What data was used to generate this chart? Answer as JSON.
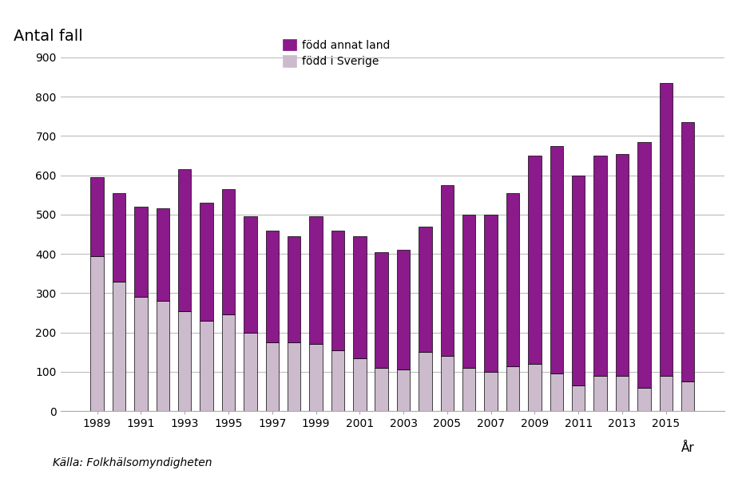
{
  "years": [
    1989,
    1990,
    1991,
    1992,
    1993,
    1994,
    1995,
    1996,
    1997,
    1998,
    1999,
    2000,
    2001,
    2002,
    2003,
    2004,
    2005,
    2006,
    2007,
    2008,
    2009,
    2010,
    2011,
    2012,
    2013,
    2014,
    2015,
    2016
  ],
  "fodd_i_sverige": [
    395,
    330,
    290,
    280,
    255,
    230,
    245,
    200,
    175,
    175,
    170,
    155,
    135,
    110,
    105,
    150,
    140,
    110,
    100,
    115,
    120,
    95,
    65,
    90,
    90,
    60,
    90,
    75
  ],
  "fodd_annat_land": [
    200,
    225,
    230,
    235,
    360,
    300,
    320,
    295,
    285,
    270,
    325,
    305,
    310,
    295,
    305,
    320,
    435,
    390,
    400,
    440,
    530,
    580,
    535,
    560,
    565,
    625,
    745,
    660
  ],
  "color_sverige": "#ccbbcc",
  "color_annat": "#8b1a8b",
  "color_border": "#000000",
  "title": "Antal fall",
  "xlabel": "År",
  "ylim": [
    0,
    900
  ],
  "yticks": [
    0,
    100,
    200,
    300,
    400,
    500,
    600,
    700,
    800,
    900
  ],
  "legend_annat": "född annat land",
  "legend_sverige": "född i Sverige",
  "source": "Källa: Folkhälsomyndigheten",
  "background_color": "#ffffff",
  "grid_color": "#bbbbbb"
}
